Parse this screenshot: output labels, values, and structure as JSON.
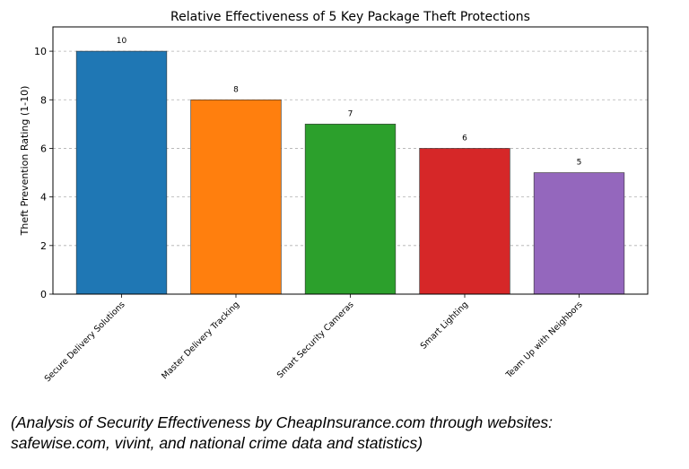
{
  "chart_data": {
    "type": "bar",
    "title": "Relative Effectiveness of 5 Key Package Theft Protections",
    "xlabel": "",
    "ylabel": "Theft Prevention Rating (1-10)",
    "ylim": [
      0,
      11
    ],
    "yticks": [
      0,
      2,
      4,
      6,
      8,
      10
    ],
    "grid": "y-dashed",
    "categories": [
      "Secure Delivery Solutions",
      "Master Delivery Tracking",
      "Smart Security Cameras",
      "Smart Lighting",
      "Team Up with Neighbors"
    ],
    "values": [
      10,
      8,
      7,
      6,
      5
    ],
    "data_labels": [
      "10",
      "8",
      "7",
      "6",
      "5"
    ],
    "colors": [
      "#1f77b4",
      "#ff7f0e",
      "#2ca02c",
      "#d62728",
      "#9467bd"
    ]
  },
  "caption": {
    "line1": "(Analysis of Security Effectiveness by CheapInsurance.com through websites:",
    "line2": "safewise.com, vivint, and national crime data and statistics)"
  }
}
